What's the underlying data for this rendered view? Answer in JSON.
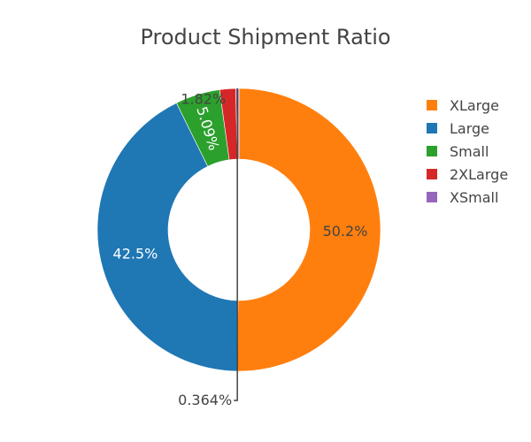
{
  "chart_data": {
    "type": "pie",
    "title": "Product Shipment Ratio",
    "hole": true,
    "legend_position": "top-right",
    "slices": [
      {
        "name": "XLarge",
        "percent": 50.2,
        "label": "50.2%",
        "color": "#ff7f0e",
        "text_color": "#444444"
      },
      {
        "name": "Large",
        "percent": 42.5,
        "label": "42.5%",
        "color": "#1f77b4",
        "text_color": "#ffffff"
      },
      {
        "name": "Small",
        "percent": 5.09,
        "label": "5.09%",
        "color": "#2ca02c",
        "text_color": "#ffffff"
      },
      {
        "name": "2XLarge",
        "percent": 1.82,
        "label": "1.82%",
        "color": "#d62728",
        "text_color": "#444444"
      },
      {
        "name": "XSmall",
        "percent": 0.364,
        "label": "0.364%",
        "color": "#9467bd",
        "text_color": "#444444"
      }
    ],
    "legend_order": [
      "XLarge",
      "Large",
      "Small",
      "2XLarge",
      "XSmall"
    ]
  }
}
